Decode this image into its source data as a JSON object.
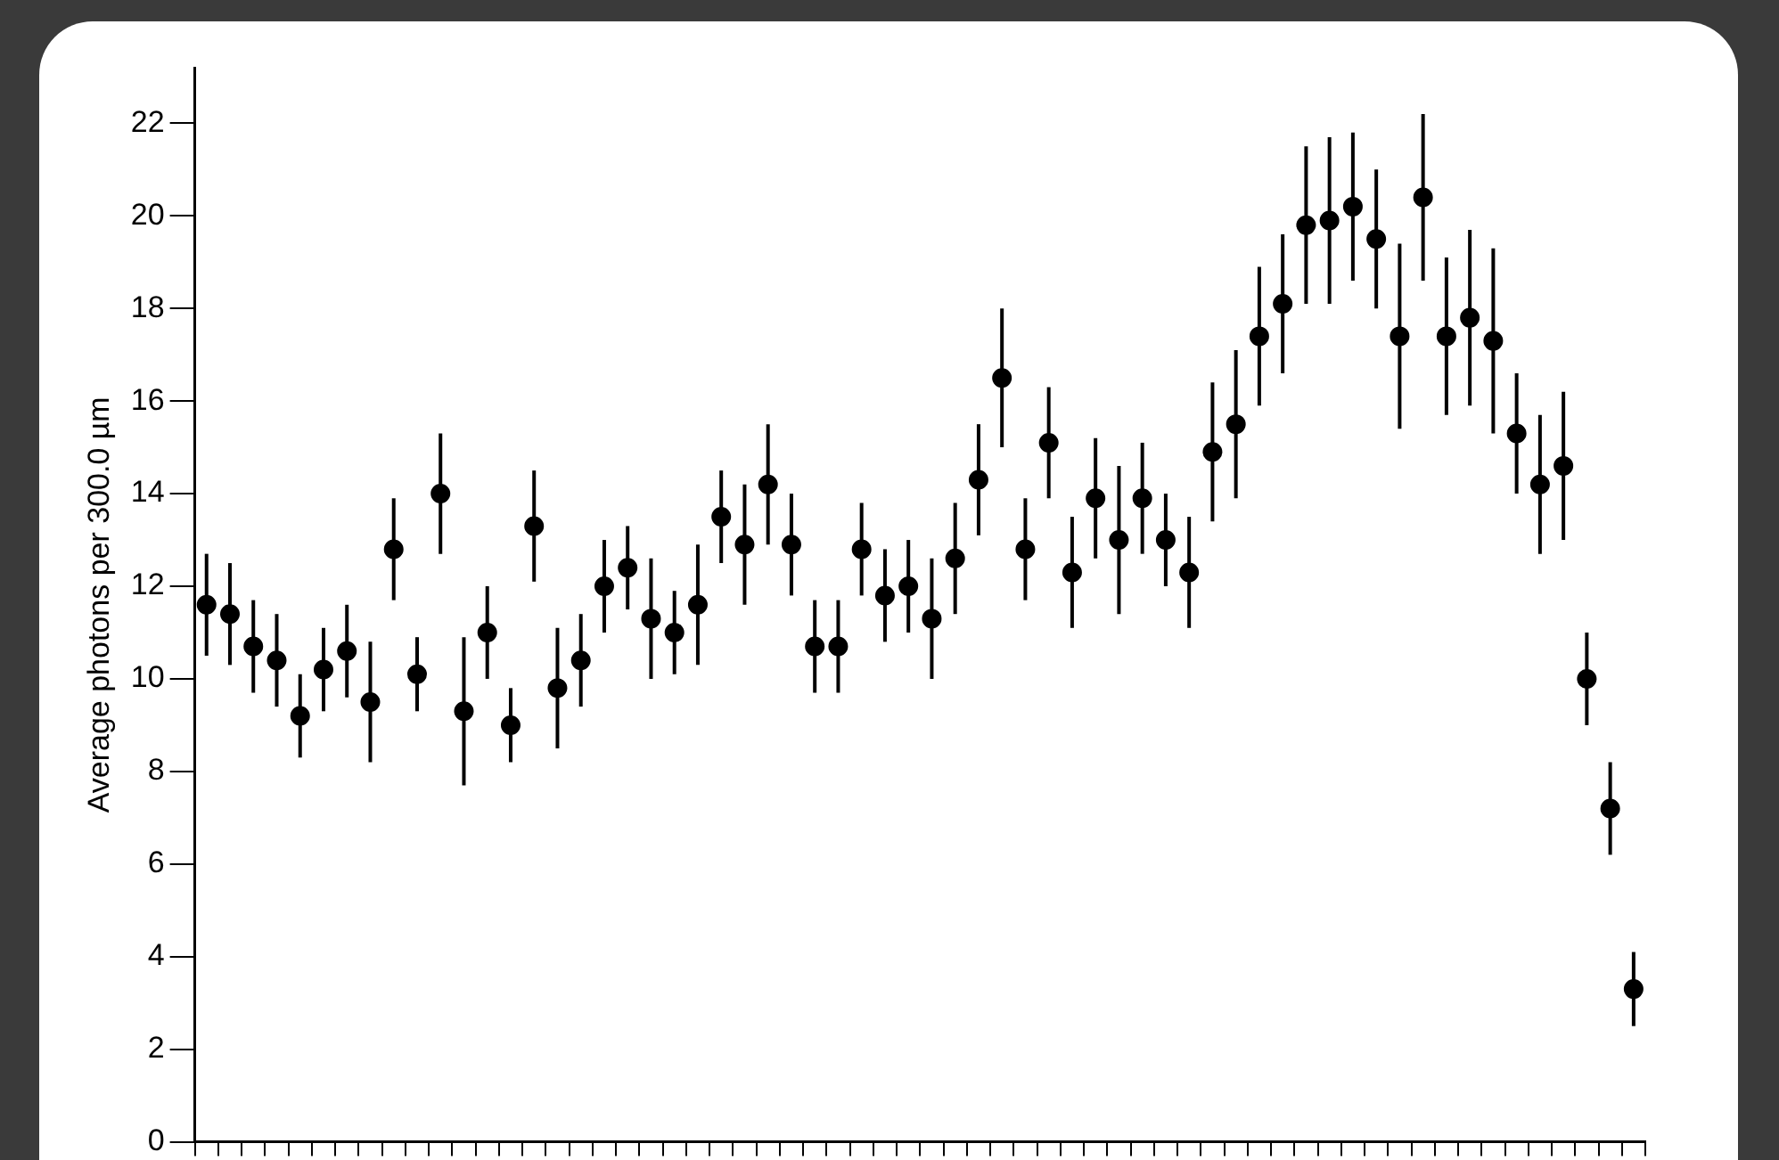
{
  "chart_data": {
    "type": "scatter",
    "ylabel": "Average photons per 300.0 µm",
    "categories": [
      null,
      null,
      null,
      null,
      null,
      null,
      null,
      null,
      null,
      null,
      null,
      null,
      null,
      null,
      null,
      null,
      null,
      null,
      null,
      null,
      null,
      null,
      null,
      null,
      null,
      null,
      null,
      null,
      null,
      null,
      null,
      null,
      null,
      null,
      null,
      null,
      null,
      null,
      null,
      null,
      null,
      null,
      null,
      null,
      null,
      null,
      null,
      null,
      null,
      null,
      null,
      null,
      null,
      null,
      null,
      null,
      null,
      null,
      null,
      null,
      null,
      null
    ],
    "series": [
      {
        "color": "#000000",
        "values": [
          11.6,
          11.4,
          10.7,
          10.4,
          9.2,
          10.2,
          10.6,
          9.5,
          12.8,
          10.1,
          14.0,
          9.3,
          11.0,
          9.0,
          13.3,
          9.8,
          10.4,
          12.0,
          12.4,
          11.3,
          11.0,
          11.6,
          13.5,
          12.9,
          14.2,
          12.9,
          10.7,
          10.7,
          12.8,
          11.8,
          12.0,
          11.3,
          12.6,
          14.3,
          16.5,
          12.8,
          15.1,
          12.3,
          13.9,
          13.0,
          13.9,
          13.0,
          12.3,
          14.9,
          15.5,
          17.4,
          18.1,
          19.8,
          19.9,
          20.2,
          19.5,
          17.4,
          20.4,
          17.4,
          17.8,
          17.3,
          15.3,
          14.2,
          14.6,
          10.0,
          7.2,
          3.3
        ],
        "errors": [
          1.1,
          1.1,
          1.0,
          1.0,
          0.9,
          0.9,
          1.0,
          1.3,
          1.1,
          0.8,
          1.3,
          1.6,
          1.0,
          0.8,
          1.2,
          1.3,
          1.0,
          1.0,
          0.9,
          1.3,
          0.9,
          1.3,
          1.0,
          1.3,
          1.3,
          1.1,
          1.0,
          1.0,
          1.0,
          1.0,
          1.0,
          1.3,
          1.2,
          1.2,
          1.5,
          1.1,
          1.2,
          1.2,
          1.3,
          1.6,
          1.2,
          1.0,
          1.2,
          1.5,
          1.6,
          1.5,
          1.5,
          1.7,
          1.8,
          1.6,
          1.5,
          2.0,
          1.8,
          1.7,
          1.9,
          2.0,
          1.3,
          1.5,
          1.6,
          1.0,
          1.0,
          0.8
        ]
      }
    ],
    "ylim": [
      0,
      23.2
    ],
    "yticks": [
      0,
      2,
      4,
      6,
      8,
      10,
      12,
      14,
      16,
      18,
      20,
      22
    ],
    "tick_labels": "y",
    "marker": "circle",
    "grid": false,
    "legend": false
  }
}
